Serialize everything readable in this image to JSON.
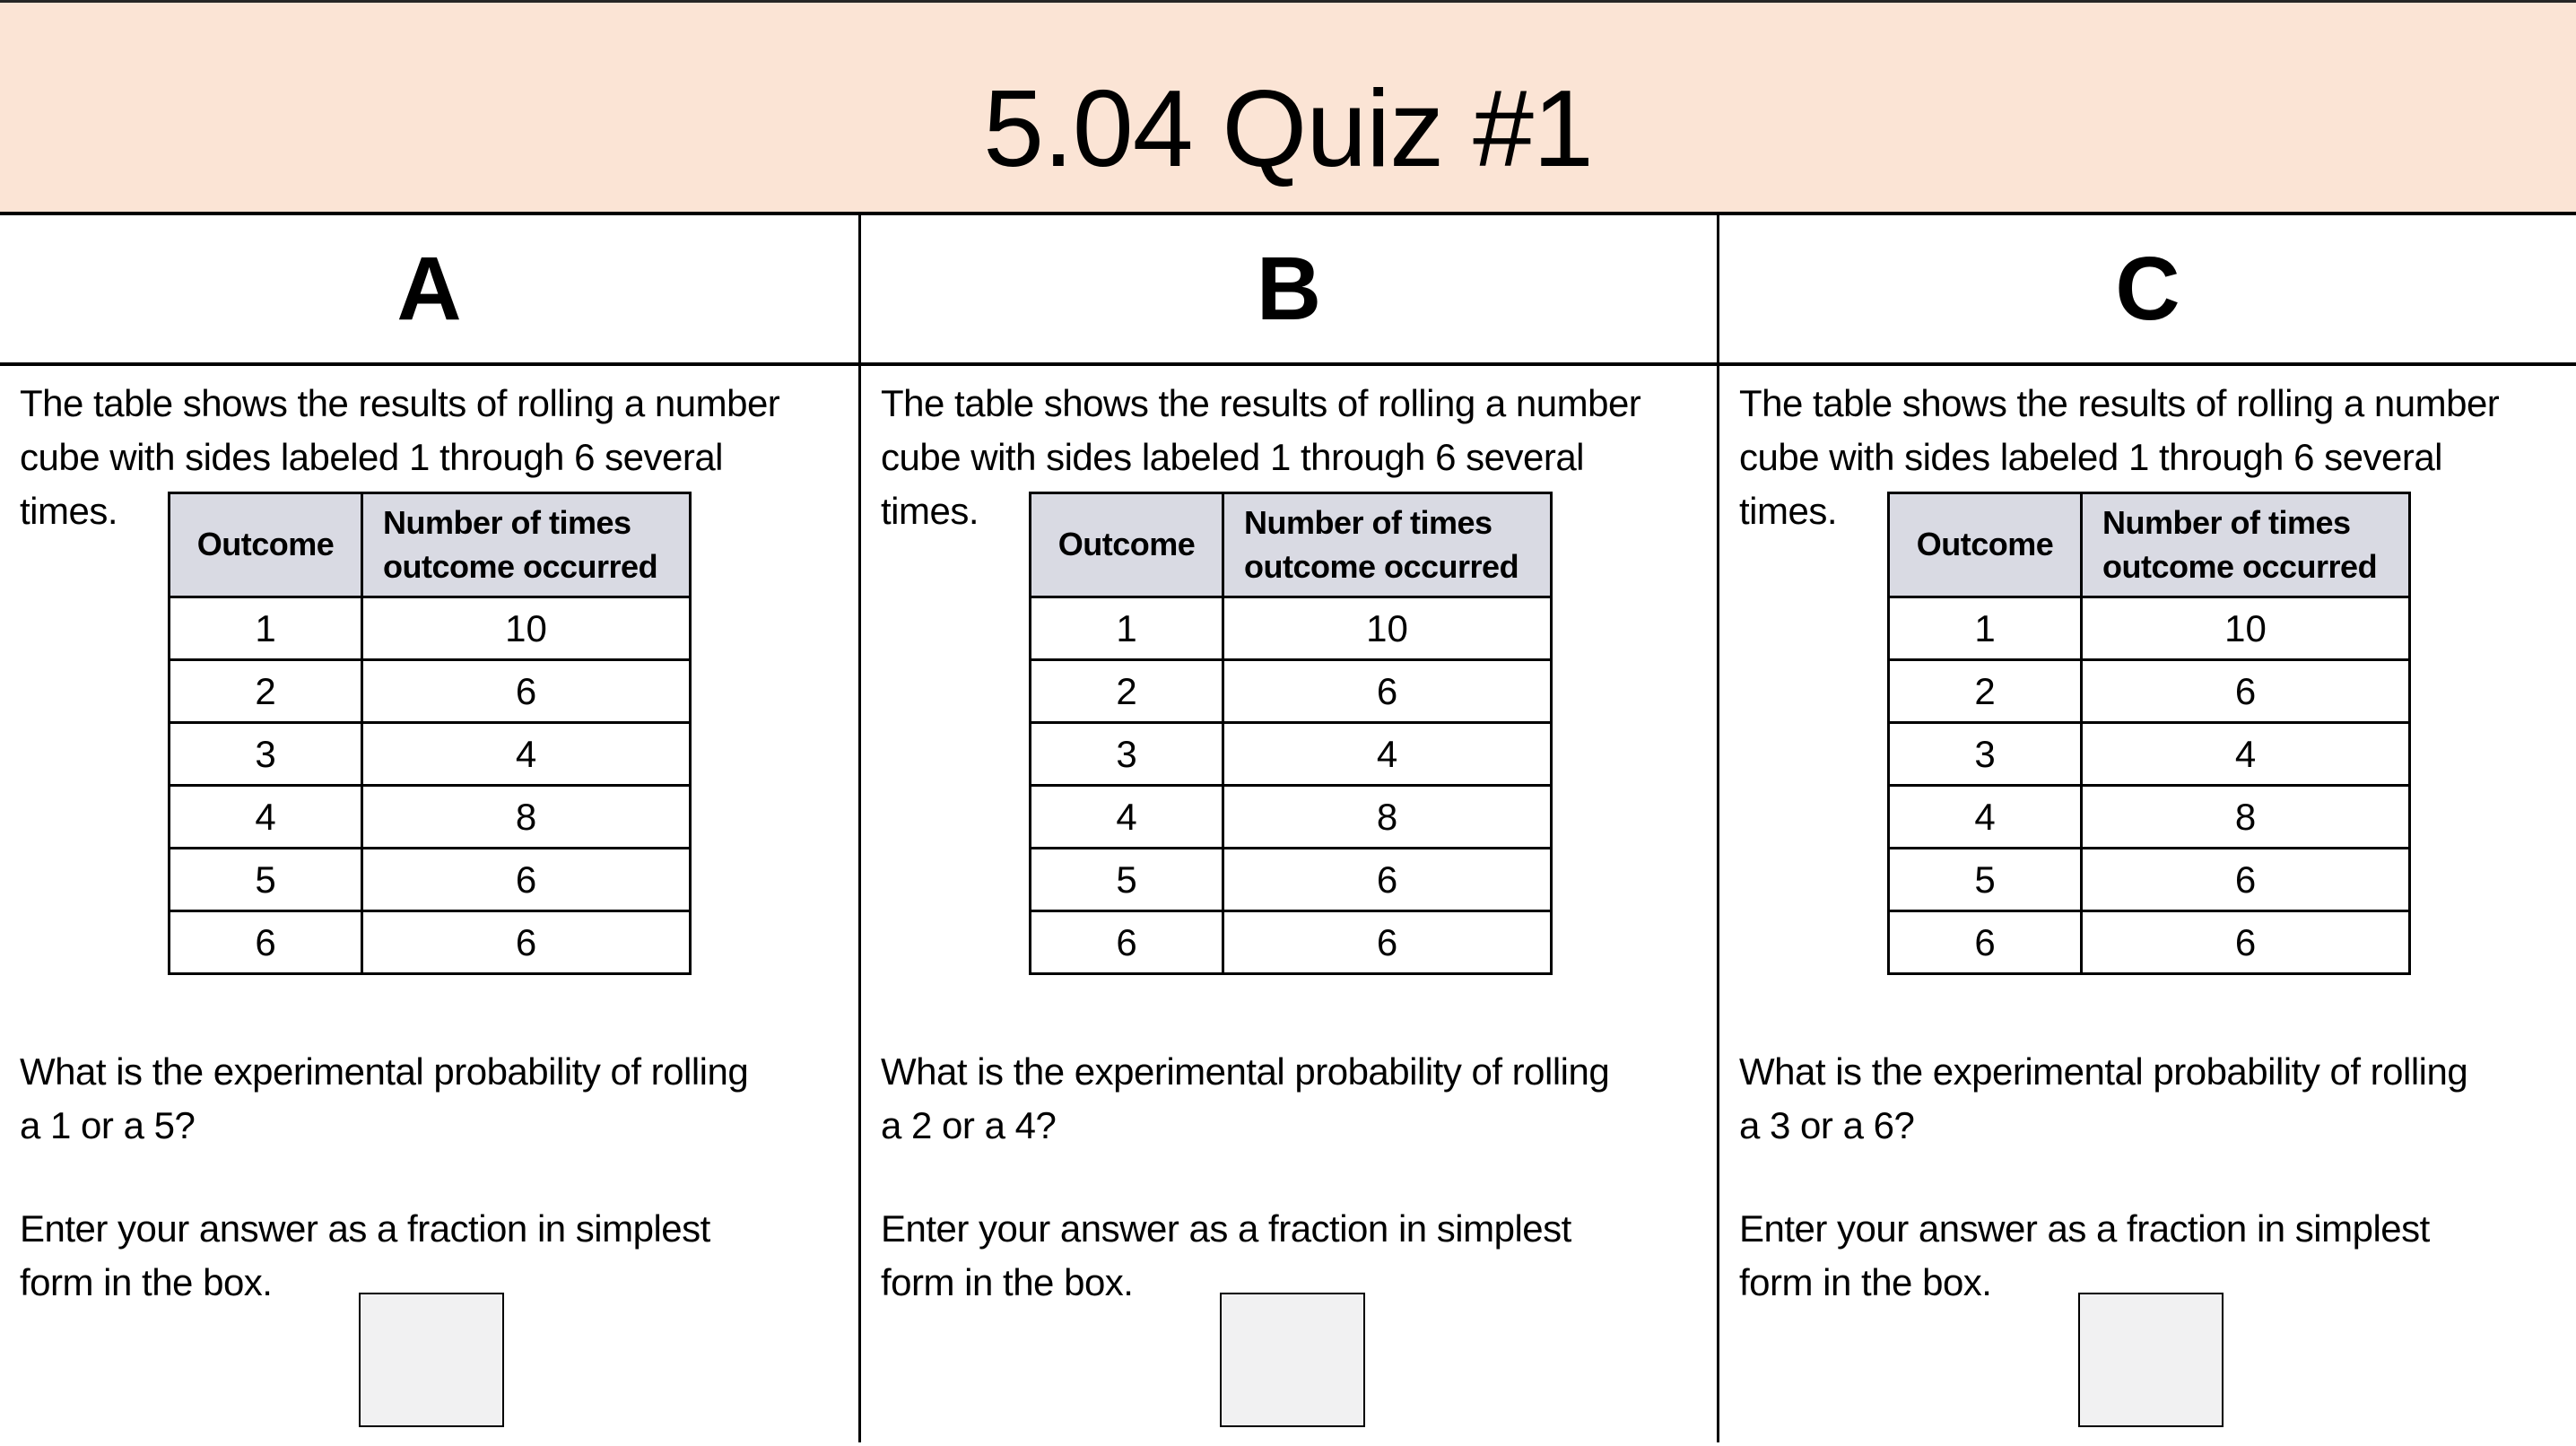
{
  "colors": {
    "header_bg": "#FBE4D5",
    "table_header_bg": "#D9DAE3",
    "answer_box_bg": "#F1F1F2",
    "line_color": "#000000"
  },
  "title": "5.04 Quiz #1",
  "columns": [
    {
      "label": "A",
      "intro_lines": [
        "The table shows the results of rolling a number",
        "cube with sides labeled 1 through 6 several",
        "times."
      ],
      "table": {
        "headers": [
          "Outcome",
          "Number of times outcome occurred"
        ],
        "rows": [
          [
            "1",
            "10"
          ],
          [
            "2",
            "6"
          ],
          [
            "3",
            "4"
          ],
          [
            "4",
            "8"
          ],
          [
            "5",
            "6"
          ],
          [
            "6",
            "6"
          ]
        ]
      },
      "question_lines": [
        "What is the experimental probability of rolling",
        "a 1 or a 5?"
      ],
      "enter_lines": [
        "Enter your answer as a fraction in simplest",
        "form in the box."
      ],
      "answer_value": ""
    },
    {
      "label": "B",
      "intro_lines": [
        "The table shows the results of rolling a number",
        "cube with sides labeled 1 through 6 several",
        "times."
      ],
      "table": {
        "headers": [
          "Outcome",
          "Number of times outcome occurred"
        ],
        "rows": [
          [
            "1",
            "10"
          ],
          [
            "2",
            "6"
          ],
          [
            "3",
            "4"
          ],
          [
            "4",
            "8"
          ],
          [
            "5",
            "6"
          ],
          [
            "6",
            "6"
          ]
        ]
      },
      "question_lines": [
        "What is the experimental probability of rolling",
        "a 2 or a 4?"
      ],
      "enter_lines": [
        "Enter your answer as a fraction in simplest",
        "form in the box."
      ],
      "answer_value": ""
    },
    {
      "label": "C",
      "intro_lines": [
        "The table shows the results of rolling a number",
        "cube with sides labeled 1 through 6 several",
        "times."
      ],
      "table": {
        "headers": [
          "Outcome",
          "Number of times outcome occurred"
        ],
        "rows": [
          [
            "1",
            "10"
          ],
          [
            "2",
            "6"
          ],
          [
            "3",
            "4"
          ],
          [
            "4",
            "8"
          ],
          [
            "5",
            "6"
          ],
          [
            "6",
            "6"
          ]
        ]
      },
      "question_lines": [
        "What is the experimental probability of rolling",
        "a 3 or a 6?"
      ],
      "enter_lines": [
        "Enter your answer as a fraction in simplest",
        "form in the box."
      ],
      "answer_value": ""
    }
  ]
}
